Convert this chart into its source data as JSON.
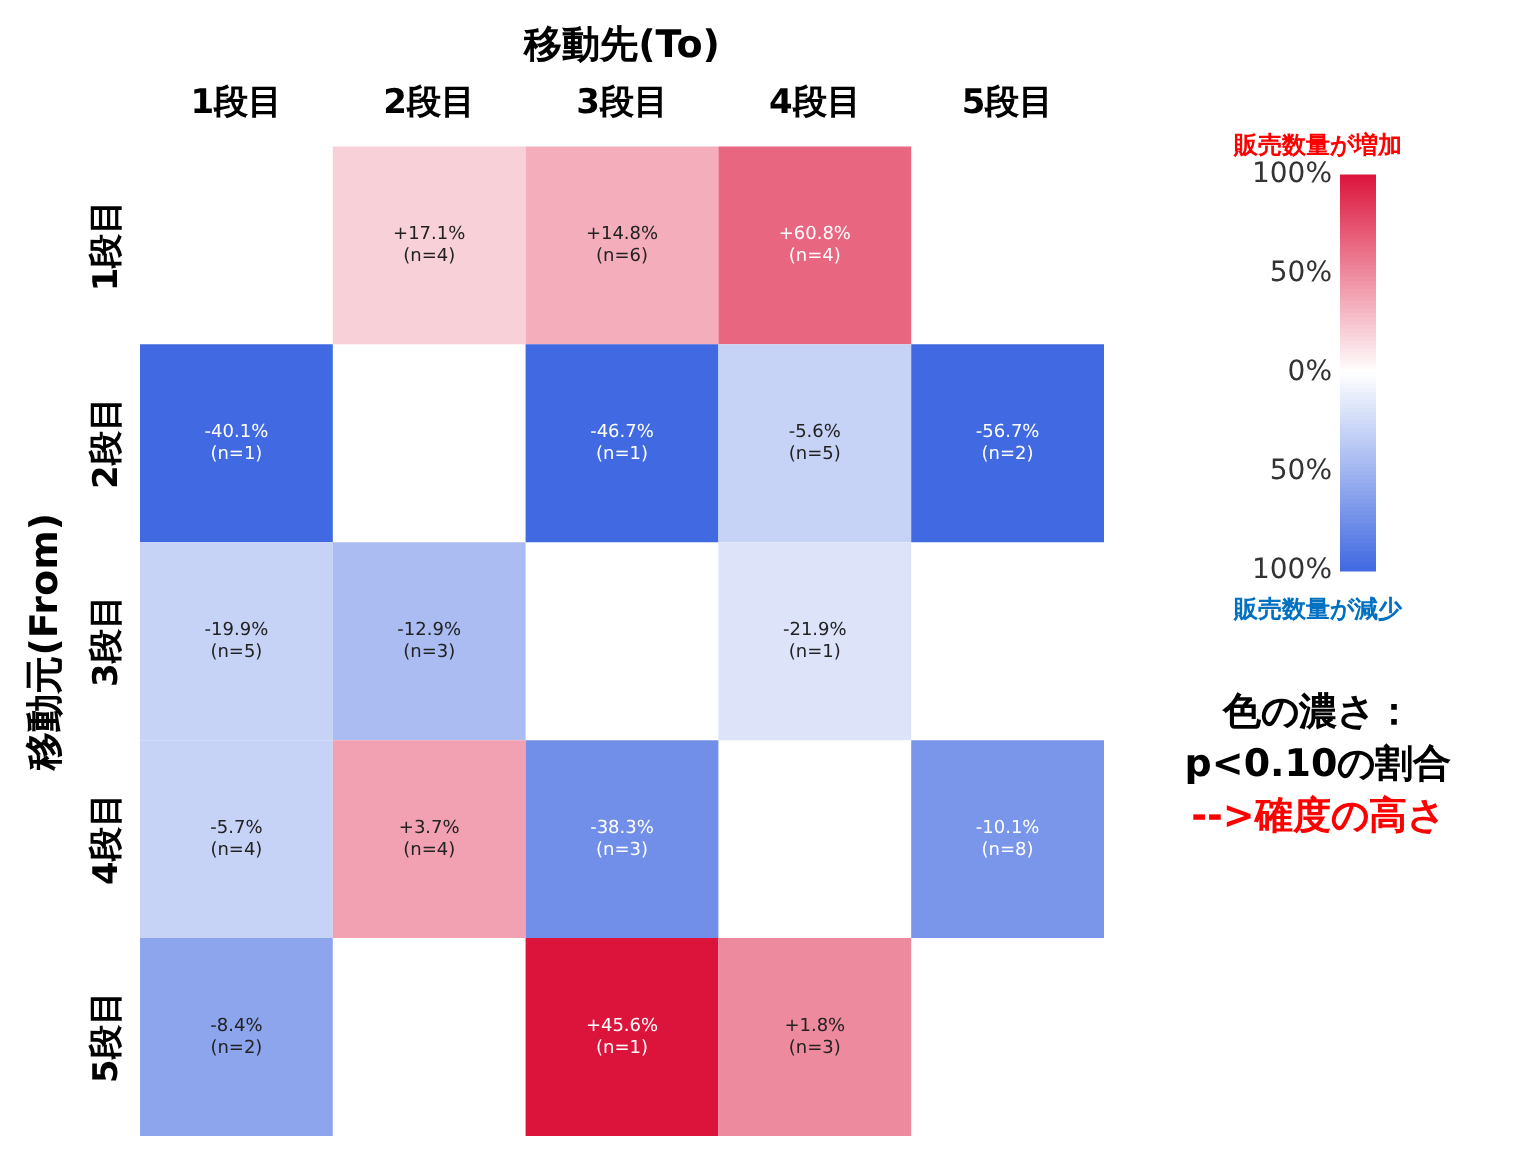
{
  "chart_data": {
    "type": "heatmap",
    "xlabel": "移動先(To)",
    "ylabel": "移動元(From)",
    "categories": [
      "1段目",
      "2段目",
      "3段目",
      "4段目",
      "5段目"
    ],
    "y_categories": [
      "1段目",
      "2段目",
      "3段目",
      "4段目",
      "5段目"
    ],
    "cells": [
      [
        null,
        20,
        35,
        65,
        null
      ],
      [
        -100,
        null,
        -100,
        -30,
        -100
      ],
      [
        -30,
        -45,
        null,
        -18,
        null
      ],
      [
        -30,
        40,
        -75,
        null,
        -70
      ],
      [
        -60,
        null,
        100,
        50,
        null
      ]
    ],
    "cell_labels": [
      [
        null,
        "+17.1%\n(n=4)",
        "+14.8%\n(n=6)",
        "+60.8%\n(n=4)",
        null
      ],
      [
        "-40.1%\n(n=1)",
        null,
        "-46.7%\n(n=1)",
        "-5.6%\n(n=5)",
        "-56.7%\n(n=2)"
      ],
      [
        "-19.9%\n(n=5)",
        "-12.9%\n(n=3)",
        null,
        "-21.9%\n(n=1)",
        null
      ],
      [
        "-5.7%\n(n=4)",
        "+3.7%\n(n=4)",
        "-38.3%\n(n=3)",
        null,
        "-10.1%\n(n=8)"
      ],
      [
        "-8.4%\n(n=2)",
        null,
        "+45.6%\n(n=1)",
        "+1.8%\n(n=3)",
        null
      ]
    ],
    "clim": [
      -100,
      100
    ],
    "cticks": [
      {
        "value": 100,
        "label": "100%"
      },
      {
        "value": 50,
        "label": "50%"
      },
      {
        "value": 0,
        "label": "0%"
      },
      {
        "value": -50,
        "label": "50%"
      },
      {
        "value": -100,
        "label": "100%"
      }
    ],
    "annotations": [
      "販売数量が増加",
      "販売数量が減少",
      "色の濃さ：",
      "p<0.10の割合",
      "-->確度の高さ"
    ]
  }
}
